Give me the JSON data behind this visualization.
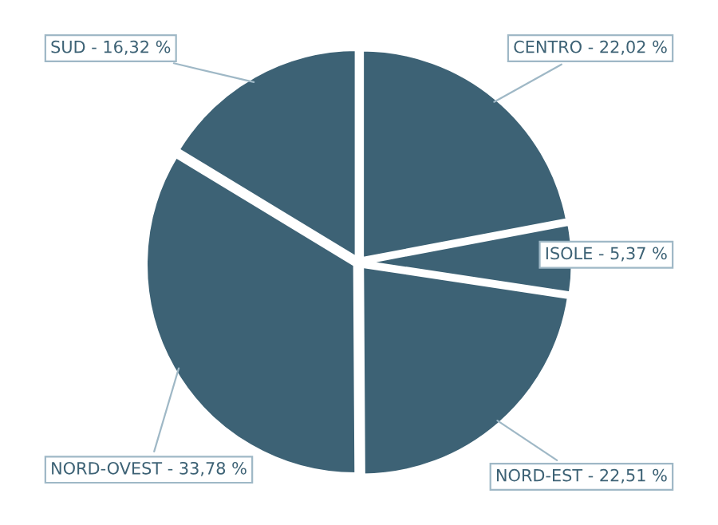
{
  "chart_data": {
    "type": "pie",
    "categories": [
      "CENTRO",
      "ISOLE",
      "NORD-EST",
      "NORD-OVEST",
      "SUD"
    ],
    "values": [
      22.02,
      5.37,
      22.51,
      33.78,
      16.32
    ],
    "value_labels": [
      "22,02 %",
      "5,37 %",
      "22,51 %",
      "33,78 %",
      "16,32 %"
    ],
    "colors": [
      "#3d6275",
      "#3d6275",
      "#3d6275",
      "#3d6275",
      "#3d6275"
    ],
    "legend": false
  }
}
